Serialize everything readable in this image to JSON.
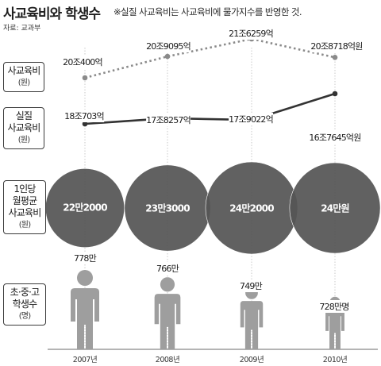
{
  "title": "사교육비와 학생수",
  "subtitle": "※실질 사교육비는 사교육비에 물가지수를 반영한 것.",
  "source": "자료: 교과부",
  "row_labels": {
    "nominal": {
      "line1": "사교육비",
      "unit": "(원)"
    },
    "real": {
      "line1": "실질",
      "line2": "사교육비",
      "unit": "(원)"
    },
    "per_capita": {
      "line1": "1인당",
      "line2": "월평균",
      "line3": "사교육비",
      "unit": "(원)"
    },
    "students": {
      "line1": "초·중·고",
      "line2": "학생수",
      "unit": "(명)"
    }
  },
  "colors": {
    "dots": "#8a8a8a",
    "line": "#333333",
    "circle": "#555555",
    "person": "#9e9e9e"
  },
  "chart_data": [
    {
      "type": "line",
      "name": "사교육비",
      "categories": [
        "2007년",
        "2008년",
        "2009년",
        "2010년"
      ],
      "values": [
        200400,
        209095,
        216259,
        208718
      ],
      "labels": [
        "20조400억",
        "20조9095억",
        "21조6259억",
        "20조8718억원"
      ],
      "style": "dotted"
    },
    {
      "type": "line",
      "name": "실질 사교육비",
      "categories": [
        "2007년",
        "2008년",
        "2009년",
        "2010년"
      ],
      "values": [
        180703,
        178257,
        179022,
        167645
      ],
      "labels": [
        "18조703억",
        "17조8257억",
        "17조9022억",
        "16조7645억원"
      ],
      "style": "solid"
    },
    {
      "type": "bubble",
      "name": "1인당 월평균 사교육비",
      "categories": [
        "2007년",
        "2008년",
        "2009년",
        "2010년"
      ],
      "values": [
        222000,
        233000,
        242000,
        240000
      ],
      "labels": [
        "22만2000",
        "23만3000",
        "24만2000",
        "24만원"
      ]
    },
    {
      "type": "pictogram",
      "name": "초·중·고 학생수",
      "categories": [
        "2007년",
        "2008년",
        "2009년",
        "2010년"
      ],
      "values": [
        7780000,
        7660000,
        7490000,
        7280000
      ],
      "labels": [
        "778만",
        "766만",
        "749만",
        "728만명"
      ]
    }
  ],
  "x_labels": [
    "2007년",
    "2008년",
    "2009년",
    "2010년"
  ]
}
